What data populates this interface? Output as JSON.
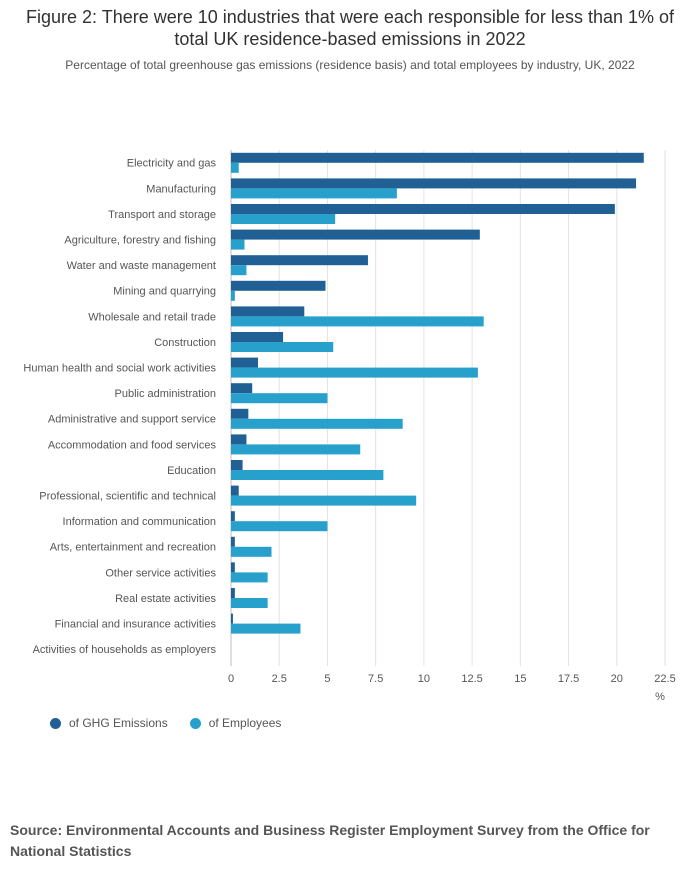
{
  "chart_data": {
    "type": "bar",
    "orientation": "horizontal",
    "title": "Figure 2: There were 10 industries that were each responsible for less than 1% of total UK residence-based emissions in 2022",
    "subtitle": "Percentage of total greenhouse gas emissions (residence basis) and total employees by industry, UK, 2022",
    "categories": [
      "Electricity and gas",
      "Manufacturing",
      "Transport and storage",
      "Agriculture, forestry and fishing",
      "Water and waste management",
      "Mining and quarrying",
      "Wholesale and retail trade",
      "Construction",
      "Human health and social work activities",
      "Public administration",
      "Administrative and support service",
      "Accommodation and food services",
      "Education",
      "Professional, scientific and technical",
      "Information and communication",
      "Arts, entertainment and recreation",
      "Other service activities",
      "Real estate activities",
      "Financial and insurance activities",
      "Activities of households as employers"
    ],
    "series": [
      {
        "name": "of GHG Emissions",
        "color": "#206095",
        "values": [
          21.4,
          21.0,
          19.9,
          12.9,
          7.1,
          4.9,
          3.8,
          2.7,
          1.4,
          1.1,
          0.9,
          0.8,
          0.6,
          0.4,
          0.2,
          0.2,
          0.2,
          0.2,
          0.1,
          0.0
        ]
      },
      {
        "name": "of Employees",
        "color": "#27a0cc",
        "values": [
          0.4,
          8.6,
          5.4,
          0.7,
          0.8,
          0.2,
          13.1,
          5.3,
          12.8,
          5.0,
          8.9,
          6.7,
          7.9,
          9.6,
          5.0,
          2.1,
          1.9,
          1.9,
          3.6,
          0.0
        ]
      }
    ],
    "x_ticks": [
      "0",
      "2.5",
      "5",
      "7.5",
      "10",
      "12.5",
      "15",
      "17.5",
      "20",
      "22.5"
    ],
    "xlim": [
      0,
      22.5
    ],
    "x_unit": "%",
    "grid": true,
    "legend_position": "bottom-left"
  },
  "source": "Source: Environmental Accounts and Business Register Employment Survey from the Office for National Statistics"
}
